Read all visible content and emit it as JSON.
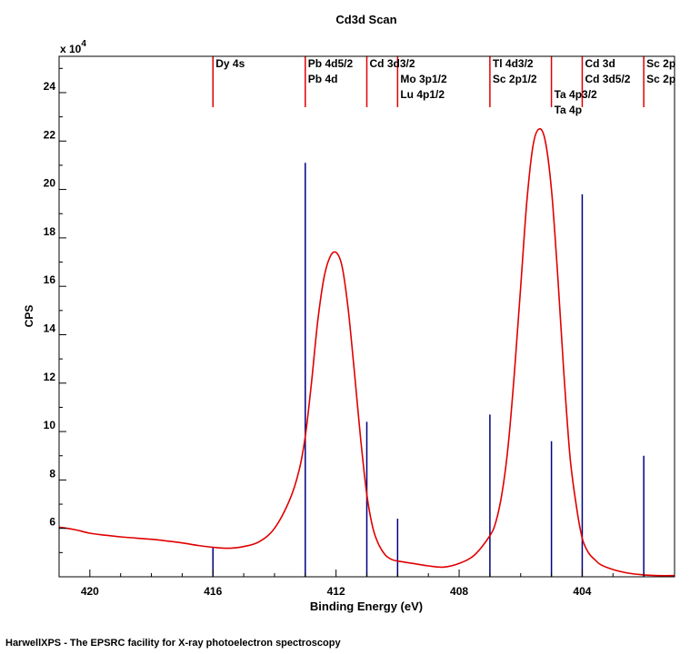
{
  "footer": "HarwellXPS - The EPSRC facility for X-ray photoelectron spectroscopy",
  "chart_data": {
    "type": "line",
    "title": "Cd3d Scan",
    "xlabel": "Binding Energy (eV)",
    "ylabel": "CPS",
    "y_multiplier_label": "x 10",
    "y_multiplier_exponent": "4",
    "x_reversed": true,
    "xlim": [
      421.0,
      401.0
    ],
    "ylim": [
      4.0,
      25.5
    ],
    "x_ticks": [
      420,
      416,
      412,
      408,
      404
    ],
    "y_ticks": [
      6,
      8,
      10,
      12,
      14,
      16,
      18,
      20,
      22,
      24
    ],
    "colors": {
      "spectrum": "#e00000",
      "reference_marker": "#e00000",
      "sticks": "#000080"
    },
    "series": [
      {
        "x": [
          421.0,
          420.5,
          420.0,
          419.5,
          419.0,
          418.5,
          418.0,
          417.5,
          417.0,
          416.5,
          416.0,
          415.5,
          415.0,
          414.5,
          414.0,
          413.5,
          413.2,
          413.0,
          412.8,
          412.6,
          412.4,
          412.2,
          412.0,
          411.8,
          411.6,
          411.4,
          411.2,
          411.0,
          410.8,
          410.6,
          410.4,
          410.2,
          410.0,
          409.5,
          409.0,
          408.5,
          408.0,
          407.5,
          407.0,
          406.8,
          406.6,
          406.4,
          406.2,
          406.0,
          405.8,
          405.6,
          405.4,
          405.2,
          405.0,
          404.8,
          404.6,
          404.4,
          404.2,
          404.0,
          403.8,
          403.6,
          403.4,
          403.0,
          402.5,
          402.0,
          401.5,
          401.0
        ],
        "values": [
          6.05,
          5.95,
          5.8,
          5.72,
          5.65,
          5.6,
          5.55,
          5.48,
          5.4,
          5.3,
          5.22,
          5.18,
          5.25,
          5.45,
          6.0,
          7.2,
          8.4,
          9.8,
          12.0,
          14.5,
          16.3,
          17.2,
          17.4,
          16.8,
          15.0,
          12.4,
          9.7,
          7.4,
          6.0,
          5.3,
          4.9,
          4.72,
          4.65,
          4.55,
          4.45,
          4.4,
          4.55,
          4.9,
          5.7,
          6.3,
          7.5,
          9.5,
          12.5,
          16.0,
          19.5,
          21.8,
          22.5,
          22.0,
          20.0,
          16.5,
          12.5,
          9.0,
          7.0,
          5.6,
          5.0,
          4.72,
          4.5,
          4.3,
          4.15,
          4.08,
          4.05,
          4.05
        ]
      }
    ],
    "sticks": [
      {
        "x": 416.0,
        "y": 5.2
      },
      {
        "x": 413.0,
        "y": 21.1
      },
      {
        "x": 411.0,
        "y": 10.4
      },
      {
        "x": 410.0,
        "y": 6.4
      },
      {
        "x": 407.0,
        "y": 10.7
      },
      {
        "x": 405.0,
        "y": 9.6
      },
      {
        "x": 404.0,
        "y": 19.8
      },
      {
        "x": 402.0,
        "y": 9.0
      }
    ],
    "annotations": [
      {
        "x": 416.0,
        "lines": [
          "Dy 4s"
        ]
      },
      {
        "x": 413.0,
        "lines": [
          "Pb 4d5/2",
          "Pb 4d"
        ]
      },
      {
        "x": 411.0,
        "lines": [
          "Cd 3d3/2"
        ]
      },
      {
        "x": 410.0,
        "lines": [
          "",
          "Mo 3p1/2",
          "Lu 4p1/2"
        ]
      },
      {
        "x": 407.0,
        "lines": [
          "Tl 4d3/2",
          "Sc 2p1/2"
        ]
      },
      {
        "x": 405.0,
        "lines": [
          "",
          "",
          "Ta 4p3/2",
          "Ta 4p"
        ]
      },
      {
        "x": 404.0,
        "lines": [
          "Cd 3d",
          "Cd 3d5/2"
        ]
      },
      {
        "x": 402.0,
        "lines": [
          "Sc 2p",
          "Sc 2p"
        ]
      }
    ]
  }
}
